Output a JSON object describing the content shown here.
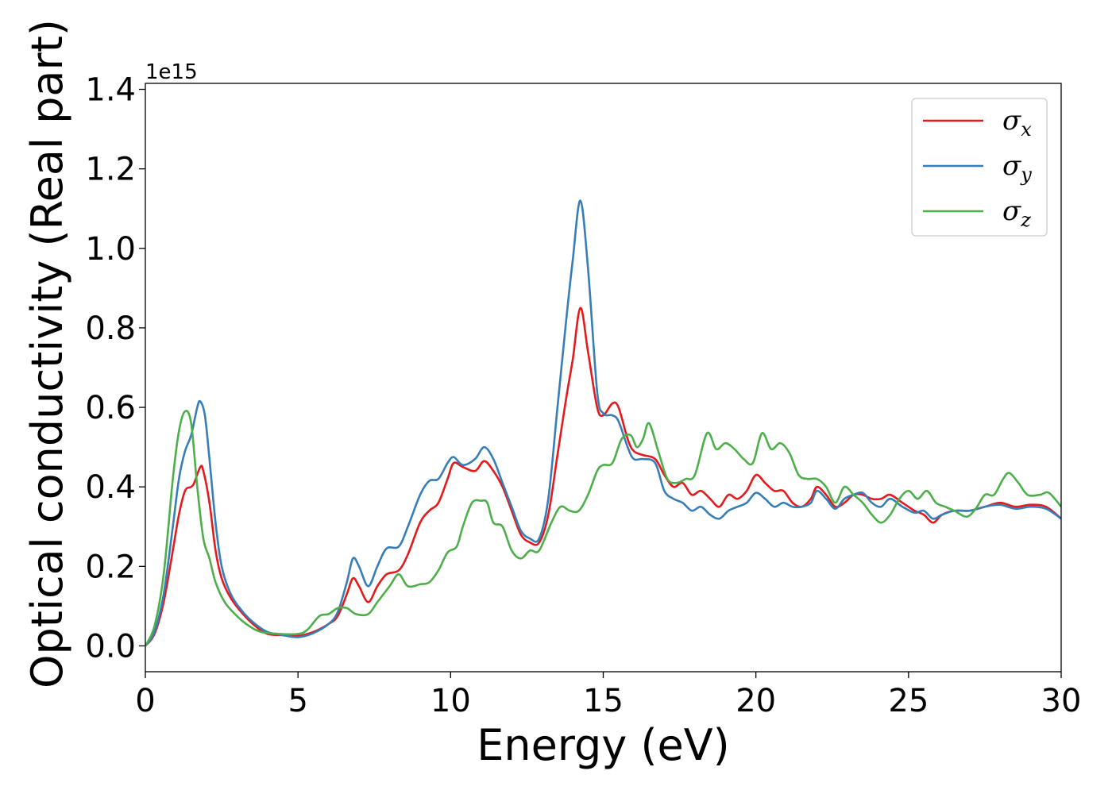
{
  "chart_data": {
    "type": "line",
    "xlabel": "Energy (eV)",
    "ylabel": "Optical conductivity (Real part)",
    "y_offset_text": "1e15",
    "xlim": [
      0,
      30
    ],
    "ylim": [
      -0.065,
      1.415
    ],
    "xticks": [
      0,
      5,
      10,
      15,
      20,
      25,
      30
    ],
    "xtick_labels": [
      "0",
      "5",
      "10",
      "15",
      "20",
      "25",
      "30"
    ],
    "yticks": [
      0.0,
      0.2,
      0.4,
      0.6,
      0.8,
      1.0,
      1.2,
      1.4
    ],
    "ytick_labels": [
      "0.0",
      "0.2",
      "0.4",
      "0.6",
      "0.8",
      "1.0",
      "1.2",
      "1.4"
    ],
    "grid": false,
    "legend_position": "top-right",
    "series": [
      {
        "name": "σx",
        "legend_base": "σ",
        "legend_sub": "x",
        "color": "#e41a1c",
        "points": [
          [
            0,
            0
          ],
          [
            0.3,
            0.03
          ],
          [
            0.6,
            0.11
          ],
          [
            0.9,
            0.24
          ],
          [
            1.1,
            0.33
          ],
          [
            1.3,
            0.39
          ],
          [
            1.5,
            0.4
          ],
          [
            1.6,
            0.41
          ],
          [
            1.8,
            0.45
          ],
          [
            1.9,
            0.44
          ],
          [
            2.1,
            0.36
          ],
          [
            2.3,
            0.24
          ],
          [
            2.5,
            0.17
          ],
          [
            2.8,
            0.12
          ],
          [
            3.2,
            0.08
          ],
          [
            3.6,
            0.05
          ],
          [
            4.0,
            0.03
          ],
          [
            4.5,
            0.027
          ],
          [
            5.0,
            0.025
          ],
          [
            5.5,
            0.035
          ],
          [
            6.0,
            0.055
          ],
          [
            6.3,
            0.075
          ],
          [
            6.6,
            0.13
          ],
          [
            6.8,
            0.17
          ],
          [
            7.0,
            0.15
          ],
          [
            7.3,
            0.11
          ],
          [
            7.6,
            0.15
          ],
          [
            7.9,
            0.18
          ],
          [
            8.3,
            0.19
          ],
          [
            8.6,
            0.23
          ],
          [
            9.0,
            0.31
          ],
          [
            9.3,
            0.34
          ],
          [
            9.6,
            0.36
          ],
          [
            9.9,
            0.42
          ],
          [
            10.1,
            0.46
          ],
          [
            10.4,
            0.45
          ],
          [
            10.8,
            0.44
          ],
          [
            11.1,
            0.465
          ],
          [
            11.4,
            0.44
          ],
          [
            11.7,
            0.4
          ],
          [
            12.0,
            0.34
          ],
          [
            12.3,
            0.28
          ],
          [
            12.6,
            0.26
          ],
          [
            12.9,
            0.26
          ],
          [
            13.2,
            0.33
          ],
          [
            13.5,
            0.48
          ],
          [
            13.8,
            0.63
          ],
          [
            14.0,
            0.72
          ],
          [
            14.25,
            0.85
          ],
          [
            14.5,
            0.74
          ],
          [
            14.8,
            0.6
          ],
          [
            15.0,
            0.58
          ],
          [
            15.3,
            0.61
          ],
          [
            15.5,
            0.6
          ],
          [
            15.8,
            0.52
          ],
          [
            16.0,
            0.49
          ],
          [
            16.3,
            0.48
          ],
          [
            16.7,
            0.47
          ],
          [
            17.0,
            0.43
          ],
          [
            17.3,
            0.4
          ],
          [
            17.6,
            0.41
          ],
          [
            17.9,
            0.38
          ],
          [
            18.2,
            0.39
          ],
          [
            18.5,
            0.37
          ],
          [
            18.8,
            0.35
          ],
          [
            19.1,
            0.38
          ],
          [
            19.4,
            0.37
          ],
          [
            19.7,
            0.39
          ],
          [
            20.0,
            0.43
          ],
          [
            20.3,
            0.41
          ],
          [
            20.6,
            0.39
          ],
          [
            20.9,
            0.39
          ],
          [
            21.2,
            0.36
          ],
          [
            21.5,
            0.35
          ],
          [
            21.8,
            0.37
          ],
          [
            22.0,
            0.4
          ],
          [
            22.3,
            0.38
          ],
          [
            22.6,
            0.35
          ],
          [
            22.9,
            0.36
          ],
          [
            23.2,
            0.38
          ],
          [
            23.5,
            0.38
          ],
          [
            23.8,
            0.37
          ],
          [
            24.1,
            0.37
          ],
          [
            24.4,
            0.38
          ],
          [
            24.8,
            0.36
          ],
          [
            25.2,
            0.34
          ],
          [
            25.5,
            0.33
          ],
          [
            25.8,
            0.31
          ],
          [
            26.1,
            0.33
          ],
          [
            26.5,
            0.34
          ],
          [
            27.0,
            0.34
          ],
          [
            27.5,
            0.35
          ],
          [
            28.0,
            0.36
          ],
          [
            28.5,
            0.35
          ],
          [
            29.0,
            0.355
          ],
          [
            29.5,
            0.35
          ],
          [
            30.0,
            0.32
          ]
        ]
      },
      {
        "name": "σy",
        "legend_base": "σ",
        "legend_sub": "y",
        "color": "#377eb8",
        "points": [
          [
            0,
            0
          ],
          [
            0.3,
            0.035
          ],
          [
            0.6,
            0.13
          ],
          [
            0.9,
            0.3
          ],
          [
            1.1,
            0.42
          ],
          [
            1.3,
            0.49
          ],
          [
            1.5,
            0.53
          ],
          [
            1.7,
            0.6
          ],
          [
            1.8,
            0.615
          ],
          [
            1.95,
            0.58
          ],
          [
            2.1,
            0.47
          ],
          [
            2.3,
            0.31
          ],
          [
            2.5,
            0.2
          ],
          [
            2.8,
            0.13
          ],
          [
            3.2,
            0.085
          ],
          [
            3.6,
            0.055
          ],
          [
            4.0,
            0.035
          ],
          [
            4.5,
            0.027
          ],
          [
            5.0,
            0.022
          ],
          [
            5.5,
            0.032
          ],
          [
            6.0,
            0.055
          ],
          [
            6.3,
            0.085
          ],
          [
            6.6,
            0.16
          ],
          [
            6.8,
            0.22
          ],
          [
            7.0,
            0.2
          ],
          [
            7.3,
            0.15
          ],
          [
            7.6,
            0.2
          ],
          [
            7.9,
            0.245
          ],
          [
            8.3,
            0.25
          ],
          [
            8.6,
            0.3
          ],
          [
            9.0,
            0.38
          ],
          [
            9.3,
            0.415
          ],
          [
            9.6,
            0.42
          ],
          [
            9.9,
            0.46
          ],
          [
            10.1,
            0.475
          ],
          [
            10.4,
            0.455
          ],
          [
            10.8,
            0.47
          ],
          [
            11.1,
            0.5
          ],
          [
            11.4,
            0.47
          ],
          [
            11.7,
            0.41
          ],
          [
            12.0,
            0.35
          ],
          [
            12.3,
            0.29
          ],
          [
            12.6,
            0.27
          ],
          [
            12.9,
            0.27
          ],
          [
            13.2,
            0.37
          ],
          [
            13.5,
            0.6
          ],
          [
            13.8,
            0.83
          ],
          [
            14.0,
            0.97
          ],
          [
            14.25,
            1.12
          ],
          [
            14.5,
            0.95
          ],
          [
            14.8,
            0.64
          ],
          [
            15.0,
            0.585
          ],
          [
            15.3,
            0.58
          ],
          [
            15.5,
            0.565
          ],
          [
            15.8,
            0.5
          ],
          [
            16.0,
            0.47
          ],
          [
            16.3,
            0.47
          ],
          [
            16.7,
            0.46
          ],
          [
            17.0,
            0.39
          ],
          [
            17.3,
            0.37
          ],
          [
            17.6,
            0.36
          ],
          [
            17.9,
            0.34
          ],
          [
            18.2,
            0.35
          ],
          [
            18.5,
            0.33
          ],
          [
            18.8,
            0.32
          ],
          [
            19.1,
            0.34
          ],
          [
            19.4,
            0.35
          ],
          [
            19.7,
            0.36
          ],
          [
            20.0,
            0.385
          ],
          [
            20.3,
            0.37
          ],
          [
            20.6,
            0.35
          ],
          [
            20.9,
            0.36
          ],
          [
            21.2,
            0.35
          ],
          [
            21.5,
            0.35
          ],
          [
            21.8,
            0.36
          ],
          [
            22.0,
            0.39
          ],
          [
            22.3,
            0.37
          ],
          [
            22.6,
            0.345
          ],
          [
            22.9,
            0.37
          ],
          [
            23.2,
            0.38
          ],
          [
            23.5,
            0.385
          ],
          [
            23.8,
            0.36
          ],
          [
            24.1,
            0.35
          ],
          [
            24.4,
            0.37
          ],
          [
            24.8,
            0.35
          ],
          [
            25.2,
            0.335
          ],
          [
            25.5,
            0.34
          ],
          [
            25.8,
            0.32
          ],
          [
            26.1,
            0.33
          ],
          [
            26.5,
            0.34
          ],
          [
            27.0,
            0.34
          ],
          [
            27.5,
            0.35
          ],
          [
            28.0,
            0.355
          ],
          [
            28.5,
            0.345
          ],
          [
            29.0,
            0.35
          ],
          [
            29.5,
            0.345
          ],
          [
            30.0,
            0.32
          ]
        ]
      },
      {
        "name": "σz",
        "legend_base": "σ",
        "legend_sub": "z",
        "color": "#4daf4a",
        "points": [
          [
            0,
            0
          ],
          [
            0.3,
            0.05
          ],
          [
            0.6,
            0.18
          ],
          [
            0.9,
            0.42
          ],
          [
            1.1,
            0.54
          ],
          [
            1.3,
            0.59
          ],
          [
            1.5,
            0.56
          ],
          [
            1.7,
            0.4
          ],
          [
            1.9,
            0.27
          ],
          [
            2.1,
            0.22
          ],
          [
            2.3,
            0.16
          ],
          [
            2.6,
            0.11
          ],
          [
            3.0,
            0.075
          ],
          [
            3.4,
            0.05
          ],
          [
            3.8,
            0.035
          ],
          [
            4.4,
            0.03
          ],
          [
            5.0,
            0.03
          ],
          [
            5.3,
            0.04
          ],
          [
            5.7,
            0.075
          ],
          [
            6.0,
            0.08
          ],
          [
            6.3,
            0.095
          ],
          [
            6.6,
            0.095
          ],
          [
            6.9,
            0.08
          ],
          [
            7.3,
            0.08
          ],
          [
            7.6,
            0.11
          ],
          [
            8.0,
            0.15
          ],
          [
            8.3,
            0.18
          ],
          [
            8.6,
            0.15
          ],
          [
            9.0,
            0.155
          ],
          [
            9.3,
            0.16
          ],
          [
            9.6,
            0.19
          ],
          [
            9.9,
            0.235
          ],
          [
            10.2,
            0.25
          ],
          [
            10.4,
            0.3
          ],
          [
            10.7,
            0.36
          ],
          [
            11.0,
            0.365
          ],
          [
            11.2,
            0.36
          ],
          [
            11.4,
            0.31
          ],
          [
            11.7,
            0.3
          ],
          [
            12.0,
            0.24
          ],
          [
            12.3,
            0.22
          ],
          [
            12.6,
            0.24
          ],
          [
            12.9,
            0.24
          ],
          [
            13.3,
            0.31
          ],
          [
            13.6,
            0.35
          ],
          [
            13.9,
            0.34
          ],
          [
            14.2,
            0.34
          ],
          [
            14.5,
            0.38
          ],
          [
            14.8,
            0.44
          ],
          [
            15.0,
            0.455
          ],
          [
            15.3,
            0.46
          ],
          [
            15.6,
            0.52
          ],
          [
            15.9,
            0.53
          ],
          [
            16.1,
            0.5
          ],
          [
            16.3,
            0.52
          ],
          [
            16.5,
            0.56
          ],
          [
            16.8,
            0.49
          ],
          [
            17.1,
            0.42
          ],
          [
            17.4,
            0.41
          ],
          [
            17.7,
            0.42
          ],
          [
            18.0,
            0.43
          ],
          [
            18.4,
            0.535
          ],
          [
            18.7,
            0.495
          ],
          [
            19.0,
            0.51
          ],
          [
            19.3,
            0.495
          ],
          [
            19.6,
            0.47
          ],
          [
            19.9,
            0.46
          ],
          [
            20.2,
            0.535
          ],
          [
            20.5,
            0.495
          ],
          [
            20.8,
            0.51
          ],
          [
            21.1,
            0.485
          ],
          [
            21.4,
            0.43
          ],
          [
            21.7,
            0.42
          ],
          [
            22.0,
            0.42
          ],
          [
            22.3,
            0.4
          ],
          [
            22.6,
            0.36
          ],
          [
            22.9,
            0.4
          ],
          [
            23.2,
            0.38
          ],
          [
            23.5,
            0.36
          ],
          [
            23.8,
            0.33
          ],
          [
            24.1,
            0.31
          ],
          [
            24.4,
            0.33
          ],
          [
            24.7,
            0.37
          ],
          [
            25.0,
            0.39
          ],
          [
            25.3,
            0.37
          ],
          [
            25.6,
            0.39
          ],
          [
            25.9,
            0.36
          ],
          [
            26.2,
            0.35
          ],
          [
            26.5,
            0.34
          ],
          [
            26.9,
            0.325
          ],
          [
            27.2,
            0.345
          ],
          [
            27.5,
            0.38
          ],
          [
            27.8,
            0.38
          ],
          [
            28.1,
            0.42
          ],
          [
            28.3,
            0.435
          ],
          [
            28.6,
            0.41
          ],
          [
            28.9,
            0.38
          ],
          [
            29.3,
            0.38
          ],
          [
            29.6,
            0.385
          ],
          [
            30.0,
            0.35
          ]
        ]
      }
    ]
  }
}
